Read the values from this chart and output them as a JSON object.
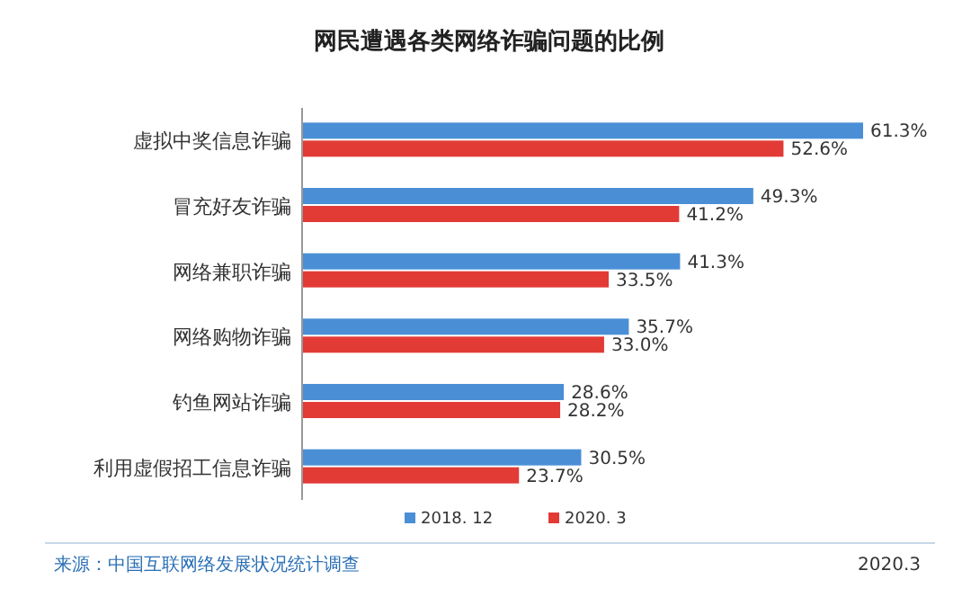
{
  "chart_data": {
    "type": "bar",
    "orientation": "horizontal",
    "title": "网民遭遇各类网络诈骗问题的比例",
    "categories": [
      "虚拟中奖信息诈骗",
      "冒充好友诈骗",
      "网络兼职诈骗",
      "网络购物诈骗",
      "钓鱼网站诈骗",
      "利用虚假招工信息诈骗"
    ],
    "series": [
      {
        "name": "2018. 12",
        "color": "#4a8fd6",
        "values": [
          61.3,
          49.3,
          41.3,
          35.7,
          28.6,
          30.5
        ],
        "value_labels": [
          "61.3%",
          "49.3%",
          "41.3%",
          "35.7%",
          "28.6%",
          "30.5%"
        ]
      },
      {
        "name": "2020. 3",
        "color": "#e23b36",
        "values": [
          52.6,
          41.2,
          33.5,
          33.0,
          28.2,
          23.7
        ],
        "value_labels": [
          "52.6%",
          "41.2%",
          "33.5%",
          "33.0%",
          "28.2%",
          "23.7%"
        ]
      }
    ],
    "legend": "bottom",
    "annotations": [
      "来源：中国互联网络发展状况统计调查",
      "2020.3"
    ]
  }
}
